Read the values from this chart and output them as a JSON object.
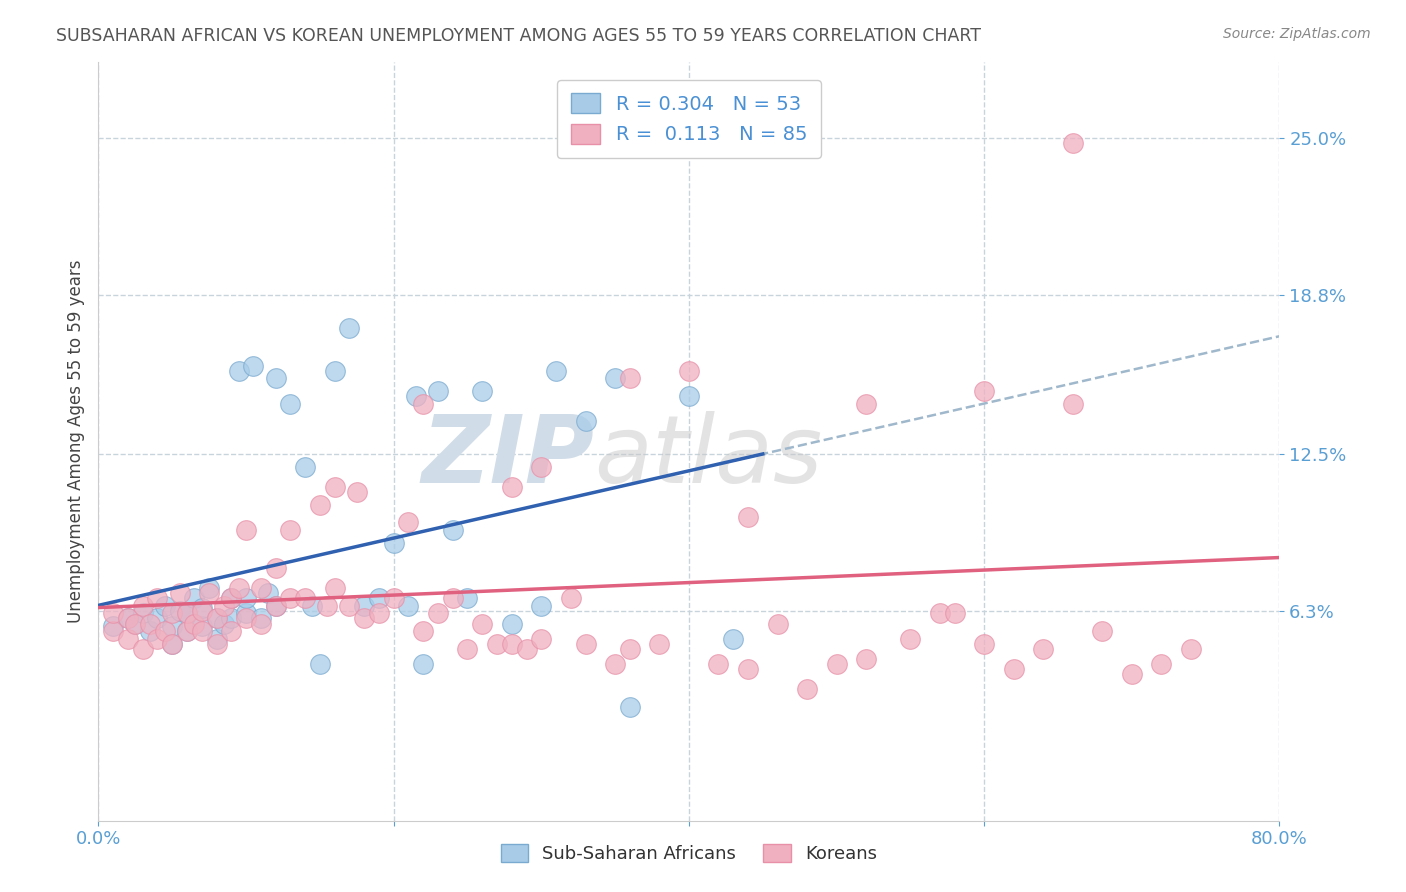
{
  "title": "SUBSAHARAN AFRICAN VS KOREAN UNEMPLOYMENT AMONG AGES 55 TO 59 YEARS CORRELATION CHART",
  "source": "Source: ZipAtlas.com",
  "ylabel": "Unemployment Among Ages 55 to 59 years",
  "xlim": [
    0.0,
    0.8
  ],
  "ylim": [
    -0.02,
    0.28
  ],
  "yticks": [
    0.063,
    0.125,
    0.188,
    0.25
  ],
  "ytick_labels": [
    "6.3%",
    "12.5%",
    "18.8%",
    "25.0%"
  ],
  "xticks": [
    0.0,
    0.2,
    0.4,
    0.6,
    0.8
  ],
  "xtick_labels": [
    "0.0%",
    "",
    "",
    "",
    "80.0%"
  ],
  "legend_label1": "Sub-Saharan Africans",
  "legend_label2": "Koreans",
  "R1": "0.304",
  "N1": "53",
  "R2": "0.113",
  "N2": "85",
  "color_blue": "#a8cce8",
  "color_pink": "#f0b0c0",
  "color_blue_edge": "#7aaad0",
  "color_pink_edge": "#e890a8",
  "line_blue": "#3060b0",
  "line_pink": "#e06080",
  "line_dashed": "#a0b8cc",
  "grid_color": "#c8d4dc",
  "watermark_color": "#d0dce8",
  "background": "#ffffff",
  "blue_scatter_x": [
    0.01,
    0.02,
    0.025,
    0.03,
    0.035,
    0.04,
    0.045,
    0.05,
    0.05,
    0.055,
    0.06,
    0.06,
    0.065,
    0.07,
    0.07,
    0.075,
    0.08,
    0.08,
    0.085,
    0.09,
    0.09,
    0.095,
    0.1,
    0.1,
    0.105,
    0.11,
    0.115,
    0.12,
    0.12,
    0.13,
    0.14,
    0.145,
    0.15,
    0.16,
    0.17,
    0.18,
    0.19,
    0.2,
    0.21,
    0.215,
    0.22,
    0.23,
    0.24,
    0.25,
    0.26,
    0.28,
    0.3,
    0.31,
    0.33,
    0.35,
    0.36,
    0.4,
    0.43
  ],
  "blue_scatter_y": [
    0.057,
    0.06,
    0.058,
    0.062,
    0.055,
    0.06,
    0.065,
    0.05,
    0.057,
    0.063,
    0.055,
    0.062,
    0.068,
    0.057,
    0.064,
    0.072,
    0.052,
    0.06,
    0.058,
    0.06,
    0.068,
    0.158,
    0.062,
    0.068,
    0.16,
    0.06,
    0.07,
    0.155,
    0.065,
    0.145,
    0.12,
    0.065,
    0.042,
    0.158,
    0.175,
    0.065,
    0.068,
    0.09,
    0.065,
    0.148,
    0.042,
    0.15,
    0.095,
    0.068,
    0.15,
    0.058,
    0.065,
    0.158,
    0.138,
    0.155,
    0.025,
    0.148,
    0.052
  ],
  "pink_scatter_x": [
    0.01,
    0.01,
    0.02,
    0.02,
    0.025,
    0.03,
    0.03,
    0.035,
    0.04,
    0.04,
    0.045,
    0.05,
    0.05,
    0.055,
    0.06,
    0.06,
    0.065,
    0.07,
    0.07,
    0.075,
    0.08,
    0.08,
    0.085,
    0.09,
    0.09,
    0.095,
    0.1,
    0.1,
    0.11,
    0.11,
    0.12,
    0.12,
    0.13,
    0.13,
    0.14,
    0.15,
    0.155,
    0.16,
    0.17,
    0.175,
    0.18,
    0.19,
    0.2,
    0.21,
    0.22,
    0.23,
    0.24,
    0.25,
    0.26,
    0.27,
    0.28,
    0.29,
    0.3,
    0.32,
    0.33,
    0.35,
    0.36,
    0.38,
    0.4,
    0.42,
    0.44,
    0.46,
    0.48,
    0.5,
    0.52,
    0.55,
    0.57,
    0.58,
    0.6,
    0.62,
    0.64,
    0.66,
    0.68,
    0.7,
    0.72,
    0.74,
    0.52,
    0.36,
    0.28,
    0.16,
    0.44,
    0.3,
    0.22,
    0.6,
    0.66
  ],
  "pink_scatter_y": [
    0.055,
    0.062,
    0.052,
    0.06,
    0.058,
    0.048,
    0.065,
    0.058,
    0.052,
    0.068,
    0.055,
    0.05,
    0.062,
    0.07,
    0.055,
    0.062,
    0.058,
    0.055,
    0.063,
    0.07,
    0.05,
    0.06,
    0.065,
    0.055,
    0.068,
    0.072,
    0.06,
    0.095,
    0.058,
    0.072,
    0.065,
    0.08,
    0.068,
    0.095,
    0.068,
    0.105,
    0.065,
    0.072,
    0.065,
    0.11,
    0.06,
    0.062,
    0.068,
    0.098,
    0.055,
    0.062,
    0.068,
    0.048,
    0.058,
    0.05,
    0.05,
    0.048,
    0.052,
    0.068,
    0.05,
    0.042,
    0.048,
    0.05,
    0.158,
    0.042,
    0.04,
    0.058,
    0.032,
    0.042,
    0.044,
    0.052,
    0.062,
    0.062,
    0.05,
    0.04,
    0.048,
    0.145,
    0.055,
    0.038,
    0.042,
    0.048,
    0.145,
    0.155,
    0.112,
    0.112,
    0.1,
    0.12,
    0.145,
    0.15,
    0.248
  ]
}
